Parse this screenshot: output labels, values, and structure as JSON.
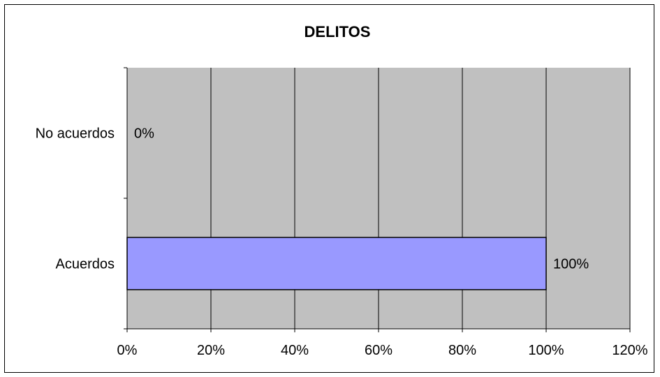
{
  "chart_data": {
    "type": "bar",
    "orientation": "horizontal",
    "title": "DELITOS",
    "categories": [
      "Acuerdos",
      "No acuerdos"
    ],
    "values": [
      100,
      0
    ],
    "data_labels": [
      "100%",
      "0%"
    ],
    "xlim": [
      0,
      120
    ],
    "x_ticks": [
      0,
      20,
      40,
      60,
      80,
      100,
      120
    ],
    "x_tick_labels": [
      "0%",
      "20%",
      "40%",
      "60%",
      "80%",
      "100%",
      "120%"
    ],
    "grid": true,
    "legend": "none",
    "colors": {
      "plot_background": "#c0c0c0",
      "bar_fill": "#9999ff",
      "bar_border": "#000000",
      "gridline": "#000000"
    }
  }
}
